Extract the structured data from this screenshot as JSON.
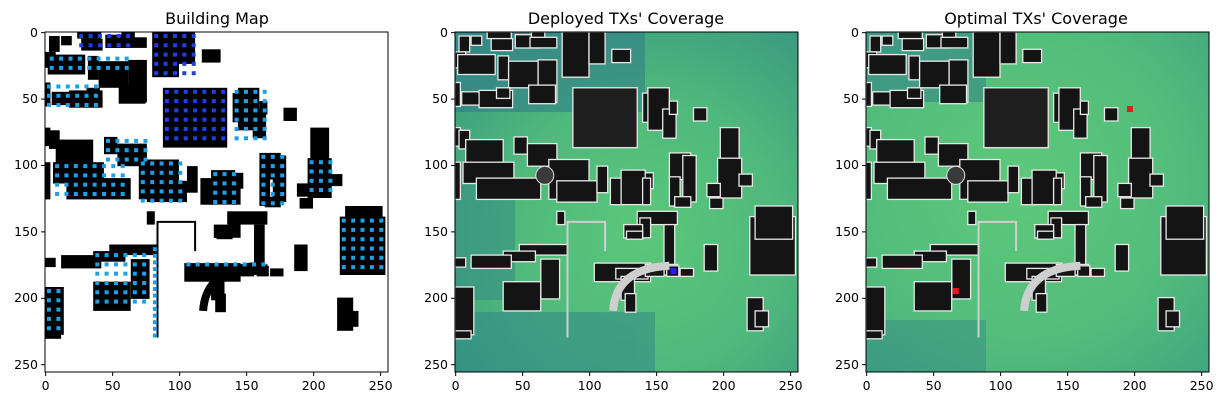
{
  "chart_data": [
    {
      "type": "heatmap",
      "title": "Building Map",
      "xlim": [
        0,
        255
      ],
      "ylim": [
        255,
        0
      ],
      "x_ticks": [
        0,
        50,
        100,
        150,
        200,
        250
      ],
      "y_ticks": [
        0,
        50,
        100,
        150,
        200,
        250
      ],
      "grid": false,
      "layers": [
        "building footprints (black)",
        "candidate TX locations (blue dots)"
      ]
    },
    {
      "type": "heatmap",
      "title": "Deployed TXs' Coverage",
      "xlim": [
        0,
        255
      ],
      "ylim": [
        255,
        0
      ],
      "x_ticks": [
        0,
        50,
        100,
        150,
        200,
        250
      ],
      "y_ticks": [
        0,
        50,
        100,
        150,
        200,
        250
      ],
      "grid": false,
      "transmitters": [
        {
          "x": 163,
          "y": 180,
          "color": "#1f1fff"
        }
      ]
    },
    {
      "type": "heatmap",
      "title": "Optimal TXs' Coverage",
      "xlim": [
        0,
        255
      ],
      "ylim": [
        255,
        0
      ],
      "x_ticks": [
        0,
        50,
        100,
        150,
        200,
        250
      ],
      "y_ticks": [
        0,
        50,
        100,
        150,
        200,
        250
      ],
      "grid": false,
      "transmitters": [
        {
          "x": 197,
          "y": 58,
          "color": "#e61a1a"
        },
        {
          "x": 67,
          "y": 195,
          "color": "#e61a1a"
        }
      ]
    }
  ],
  "colors": {
    "building": "#111111",
    "candidate_dot": "#1f9fe6",
    "candidate_dot_dark": "#1f3fe6",
    "coverage_low": "#2f7f85",
    "coverage_high": "#5bc77a"
  }
}
